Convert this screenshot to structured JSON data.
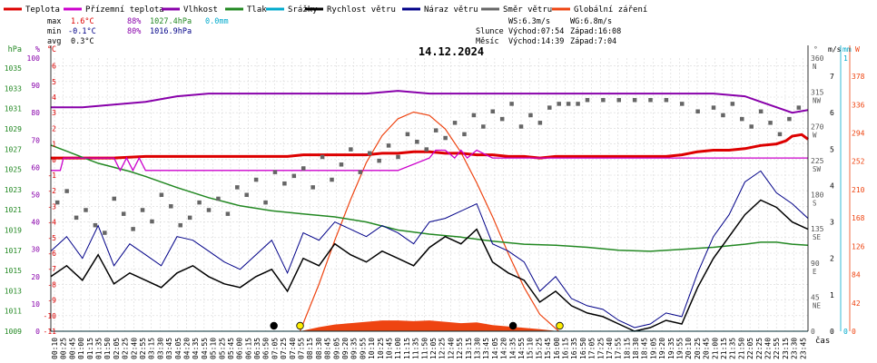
{
  "legend": [
    {
      "label": "Teplota",
      "color": "#dd0000"
    },
    {
      "label": "Přízemní teplota",
      "color": "#cc00cc"
    },
    {
      "label": "Vlhkost",
      "color": "#8800aa"
    },
    {
      "label": "Tlak",
      "color": "#228822"
    },
    {
      "label": "Srážky",
      "color": "#00aacc"
    },
    {
      "label": "Rychlost větru",
      "color": "#000000"
    },
    {
      "label": "Náraz větru",
      "color": "#000088"
    },
    {
      "label": "Směr větru",
      "color": "#666666"
    },
    {
      "label": "Globální záření",
      "color": "#ee4411"
    }
  ],
  "stats": {
    "max": {
      "label": "max",
      "temp": "1.6°C",
      "hum": "88%",
      "pres": "1027.4hPa",
      "rain": "0.0mm"
    },
    "min": {
      "label": "min",
      "temp": "-0.1°C",
      "hum": "80%",
      "pres": "1016.9hPa"
    },
    "avg": {
      "label": "avg",
      "temp": "0.3°C"
    }
  },
  "wind_info": {
    "ws": "WS:6.3m/s",
    "wg": "WG:6.8m/s"
  },
  "sun_info": {
    "label": "Slunce",
    "rise": "Východ:07:54",
    "set": "Západ:16:08"
  },
  "moon_info": {
    "label": "Měsíc",
    "rise": "Východ:14:39",
    "set": "Západ:7:04"
  },
  "colors": {
    "temp": "#dd0000",
    "ground": "#cc00cc",
    "hum": "#8800aa",
    "pres": "#228822",
    "rain": "#00aacc",
    "wind": "#000000",
    "gust": "#000088",
    "dir": "#666666",
    "rad": "#ee4411",
    "grid": "#d8d8d8"
  },
  "chart_data": {
    "type": "line",
    "title": "14.12.2024",
    "xlabel": "čas",
    "x_ticks": [
      "00:10",
      "00:25",
      "00:45",
      "01:00",
      "01:15",
      "01:35",
      "01:50",
      "02:05",
      "02:25",
      "02:40",
      "02:55",
      "03:15",
      "03:30",
      "03:45",
      "04:05",
      "04:20",
      "04:35",
      "04:55",
      "05:10",
      "05:25",
      "05:45",
      "06:00",
      "06:15",
      "06:35",
      "06:50",
      "07:05",
      "07:25",
      "07:40",
      "07:55",
      "08:15",
      "08:30",
      "08:45",
      "09:05",
      "09:20",
      "09:35",
      "09:55",
      "10:10",
      "10:25",
      "10:45",
      "11:00",
      "11:15",
      "11:35",
      "11:50",
      "12:05",
      "12:25",
      "12:40",
      "12:55",
      "13:15",
      "13:30",
      "13:45",
      "14:05",
      "14:20",
      "14:35",
      "14:55",
      "15:10",
      "15:25",
      "15:45",
      "16:00",
      "16:15",
      "16:35",
      "16:50",
      "17:05",
      "17:25",
      "17:40",
      "17:55",
      "18:15",
      "18:30",
      "18:45",
      "19:05",
      "19:20",
      "19:35",
      "19:55",
      "20:10",
      "20:25",
      "20:45",
      "21:00",
      "21:15",
      "21:35",
      "21:50",
      "22:05",
      "22:25",
      "22:40",
      "22:55",
      "23:15",
      "23:30",
      "23:45"
    ],
    "axes": {
      "pressure": {
        "unit": "hPa",
        "ticks": [
          1009,
          1011,
          1013,
          1015,
          1017,
          1019,
          1021,
          1023,
          1025,
          1027,
          1029,
          1031,
          1033,
          1035
        ],
        "range": [
          1009,
          1036
        ]
      },
      "humidity": {
        "unit": "%",
        "ticks": [
          0,
          10,
          20,
          30,
          40,
          50,
          60,
          70,
          80,
          90,
          100
        ],
        "range": [
          0,
          100
        ]
      },
      "temperature": {
        "unit": "°C",
        "ticks": [
          -11,
          -10,
          -9,
          -8,
          -7,
          -6,
          -5,
          -4,
          -3,
          -2,
          -1,
          0,
          1,
          2,
          3,
          4,
          5,
          6
        ],
        "range": [
          -11,
          6.5
        ]
      },
      "direction": {
        "unit": "°",
        "ticks": [
          {
            "v": 0,
            "t": "0",
            "c": ""
          },
          {
            "v": 45,
            "t": "45",
            "c": "NE"
          },
          {
            "v": 90,
            "t": "90",
            "c": "E"
          },
          {
            "v": 135,
            "t": "135",
            "c": "SE"
          },
          {
            "v": 180,
            "t": "180",
            "c": "S"
          },
          {
            "v": 225,
            "t": "225",
            "c": "SW"
          },
          {
            "v": 270,
            "t": "270",
            "c": "W"
          },
          {
            "v": 315,
            "t": "315",
            "c": "NW"
          },
          {
            "v": 360,
            "t": "360",
            "c": "N"
          }
        ],
        "range": [
          0,
          360
        ]
      },
      "wind_speed": {
        "unit": "m/s",
        "ticks": [
          0,
          1,
          2,
          3,
          4,
          5,
          6,
          7
        ],
        "range": [
          0,
          7.5
        ]
      },
      "rain": {
        "unit": "mm",
        "ticks": [
          0,
          1
        ],
        "range": [
          0,
          1
        ]
      },
      "radiation": {
        "unit": "W",
        "ticks": [
          0,
          42,
          84,
          126,
          168,
          210,
          252,
          294,
          336,
          378
        ],
        "range": [
          0,
          405
        ]
      }
    },
    "series": [
      {
        "name": "Teplota",
        "axis": "temperature",
        "x": [
          0,
          1,
          2,
          3,
          4,
          5,
          6,
          7,
          7.5,
          8,
          8.5,
          9,
          9.5,
          10,
          10.5,
          11,
          11.5,
          12,
          12.5,
          13,
          13.5,
          14,
          14.5,
          15,
          15.5,
          16,
          16.5,
          17,
          18,
          19,
          19.5,
          20,
          20.5,
          21,
          21.5,
          22,
          22.5,
          23,
          23.3,
          23.5,
          23.8,
          24
        ],
        "y": [
          0.1,
          0.1,
          0.1,
          0.2,
          0.2,
          0.2,
          0.2,
          0.2,
          0.2,
          0.3,
          0.3,
          0.3,
          0.3,
          0.3,
          0.4,
          0.4,
          0.5,
          0.5,
          0.4,
          0.4,
          0.3,
          0.3,
          0.2,
          0.2,
          0.1,
          0.2,
          0.2,
          0.2,
          0.2,
          0.2,
          0.2,
          0.3,
          0.5,
          0.6,
          0.6,
          0.7,
          0.9,
          1.0,
          1.2,
          1.5,
          1.6,
          1.3
        ]
      },
      {
        "name": "Vlhkost",
        "axis": "humidity",
        "x": [
          0,
          1,
          2,
          3,
          4,
          5,
          6,
          7,
          8,
          9,
          10,
          11,
          12,
          13,
          14,
          15,
          16,
          17,
          18,
          19,
          20,
          21,
          22,
          22.5,
          23,
          23.5,
          24
        ],
        "y": [
          82,
          82,
          83,
          84,
          86,
          87,
          87,
          87,
          87,
          87,
          87,
          88,
          87,
          87,
          87,
          87,
          87,
          87,
          87,
          87,
          87,
          87,
          86,
          84,
          82,
          80,
          81
        ]
      },
      {
        "name": "Tlak",
        "axis": "pressure",
        "x": [
          0,
          0.5,
          1,
          1.5,
          2,
          2.5,
          3,
          4,
          5,
          6,
          7,
          8,
          9,
          10,
          11,
          12,
          13,
          14,
          15,
          16,
          17,
          18,
          19,
          20,
          21,
          22,
          22.5,
          23,
          23.5,
          24
        ],
        "y": [
          1027.4,
          1026.8,
          1026.2,
          1025.6,
          1025.2,
          1024.8,
          1024.3,
          1023.2,
          1022.2,
          1021.4,
          1020.9,
          1020.6,
          1020.3,
          1019.8,
          1019.0,
          1018.6,
          1018.3,
          1017.9,
          1017.6,
          1017.5,
          1017.3,
          1017.0,
          1016.9,
          1017.1,
          1017.3,
          1017.6,
          1017.8,
          1017.8,
          1017.6,
          1017.5
        ]
      },
      {
        "name": "Přízemní teplota",
        "axis": "temperature",
        "x": [
          0,
          0.3,
          0.4,
          2,
          2.2,
          2.4,
          2.6,
          2.8,
          3,
          3.5,
          4,
          4.5,
          5,
          6,
          7,
          10,
          11,
          12,
          12.2,
          12.5,
          12.8,
          13,
          13.2,
          13.5,
          14,
          15,
          16,
          20,
          21,
          22,
          22.5,
          23,
          23.5,
          24
        ],
        "y": [
          -0.7,
          -0.7,
          0.1,
          0.1,
          -0.7,
          0.1,
          -0.7,
          0.1,
          -0.7,
          -0.7,
          -0.7,
          -0.7,
          -0.7,
          -0.7,
          -0.7,
          -0.7,
          -0.7,
          0.1,
          0.6,
          0.6,
          0.1,
          0.6,
          0.1,
          0.6,
          0.1,
          0.1,
          0.1,
          0.1,
          0.1,
          0.1,
          0.1,
          0.1,
          0.1,
          0.1
        ]
      },
      {
        "name": "Rychlost větru",
        "axis": "wind_speed",
        "x": [
          0,
          0.5,
          1,
          1.5,
          2,
          2.5,
          3,
          3.5,
          4,
          4.5,
          5,
          5.5,
          6,
          6.5,
          7,
          7.5,
          8,
          8.5,
          9,
          9.5,
          10,
          10.5,
          11,
          11.5,
          12,
          12.5,
          13,
          13.5,
          14,
          14.5,
          15,
          15.5,
          16,
          16.5,
          17,
          17.5,
          18,
          18.5,
          19,
          19.5,
          20,
          20.5,
          21,
          21.5,
          22,
          22.5,
          23,
          23.5,
          24
        ],
        "y": [
          1.5,
          1.8,
          1.4,
          2.1,
          1.3,
          1.6,
          1.4,
          1.2,
          1.6,
          1.8,
          1.5,
          1.3,
          1.2,
          1.5,
          1.7,
          1.1,
          2.0,
          1.8,
          2.4,
          2.1,
          1.9,
          2.2,
          2.0,
          1.8,
          2.3,
          2.6,
          2.4,
          2.8,
          1.9,
          1.6,
          1.4,
          0.8,
          1.1,
          0.7,
          0.5,
          0.4,
          0.2,
          0.0,
          0.1,
          0.3,
          0.2,
          1.2,
          2.0,
          2.6,
          3.2,
          3.6,
          3.4,
          3.0,
          2.8
        ]
      },
      {
        "name": "Náraz větru",
        "axis": "wind_speed",
        "x": [
          0,
          0.5,
          1,
          1.5,
          2,
          2.5,
          3,
          3.5,
          4,
          4.5,
          5,
          5.5,
          6,
          6.5,
          7,
          7.5,
          8,
          8.5,
          9,
          9.5,
          10,
          10.5,
          11,
          11.5,
          12,
          12.5,
          13,
          13.5,
          14,
          14.5,
          15,
          15.5,
          16,
          16.5,
          17,
          17.5,
          18,
          18.5,
          19,
          19.5,
          20,
          20.5,
          21,
          21.5,
          22,
          22.5,
          23,
          23.5,
          24
        ],
        "y": [
          2.2,
          2.6,
          2.0,
          2.9,
          1.8,
          2.4,
          2.1,
          1.8,
          2.6,
          2.5,
          2.2,
          1.9,
          1.7,
          2.1,
          2.5,
          1.6,
          2.7,
          2.5,
          3.0,
          2.8,
          2.6,
          2.9,
          2.7,
          2.4,
          3.0,
          3.1,
          3.3,
          3.5,
          2.4,
          2.2,
          1.9,
          1.1,
          1.5,
          0.9,
          0.7,
          0.6,
          0.3,
          0.1,
          0.2,
          0.5,
          0.4,
          1.6,
          2.6,
          3.2,
          4.1,
          4.4,
          3.8,
          3.5,
          3.1
        ]
      },
      {
        "name": "Směr větru",
        "axis": "direction",
        "x": [
          0.2,
          0.5,
          0.8,
          1.1,
          1.4,
          1.7,
          2.0,
          2.3,
          2.6,
          2.9,
          3.2,
          3.5,
          3.8,
          4.1,
          4.4,
          4.7,
          5.0,
          5.3,
          5.6,
          5.9,
          6.2,
          6.5,
          6.8,
          7.1,
          7.4,
          7.7,
          8.0,
          8.3,
          8.6,
          8.9,
          9.2,
          9.5,
          9.8,
          10.1,
          10.4,
          10.7,
          11.0,
          11.3,
          11.6,
          11.9,
          12.2,
          12.5,
          12.8,
          13.1,
          13.4,
          13.7,
          14.0,
          14.3,
          14.6,
          14.9,
          15.2,
          15.5,
          15.8,
          16.1,
          16.4,
          16.7,
          17.0,
          17.5,
          18.0,
          18.5,
          19.0,
          19.5,
          20.0,
          20.5,
          21.0,
          21.3,
          21.6,
          21.9,
          22.2,
          22.5,
          22.8,
          23.1,
          23.4,
          23.7
        ],
        "y": [
          170,
          185,
          150,
          160,
          140,
          130,
          175,
          155,
          135,
          160,
          145,
          180,
          165,
          140,
          150,
          170,
          160,
          175,
          155,
          190,
          180,
          200,
          170,
          210,
          195,
          205,
          215,
          190,
          230,
          200,
          220,
          240,
          210,
          235,
          225,
          245,
          230,
          260,
          250,
          240,
          265,
          255,
          275,
          260,
          285,
          270,
          290,
          280,
          300,
          270,
          285,
          275,
          295,
          300,
          300,
          300,
          305,
          305,
          305,
          305,
          305,
          305,
          300,
          290,
          295,
          285,
          300,
          280,
          270,
          290,
          275,
          260,
          280,
          295
        ]
      },
      {
        "name": "Globální záření",
        "axis": "radiation",
        "x": [
          7.9,
          8.5,
          9,
          9.5,
          10,
          10.5,
          11,
          11.5,
          12,
          12.5,
          13,
          13.5,
          14,
          14.5,
          15,
          15.5,
          16.1
        ],
        "y": [
          0,
          6,
          10,
          12,
          14,
          16,
          16,
          15,
          16,
          14,
          12,
          13,
          9,
          7,
          5,
          3,
          0
        ]
      },
      {
        "name": "Srážky",
        "axis": "rain",
        "x": [
          0,
          24
        ],
        "y": [
          0,
          0
        ]
      }
    ],
    "theoretical_radiation": {
      "axis": "radiation",
      "x": [
        7.9,
        8.5,
        9,
        9.5,
        10,
        10.5,
        11,
        11.5,
        12,
        12.5,
        13,
        13.5,
        14,
        14.5,
        15,
        15.5,
        16.1
      ],
      "y": [
        0,
        70,
        135,
        195,
        250,
        290,
        315,
        325,
        320,
        300,
        265,
        220,
        170,
        115,
        65,
        25,
        0
      ]
    },
    "markers": [
      {
        "name": "moonset",
        "x": 7.07,
        "color": "#000000"
      },
      {
        "name": "sunrise",
        "x": 7.9,
        "color": "#ffee00"
      },
      {
        "name": "moonrise",
        "x": 14.65,
        "color": "#000000"
      },
      {
        "name": "sunset",
        "x": 16.13,
        "color": "#ffee00"
      }
    ]
  }
}
